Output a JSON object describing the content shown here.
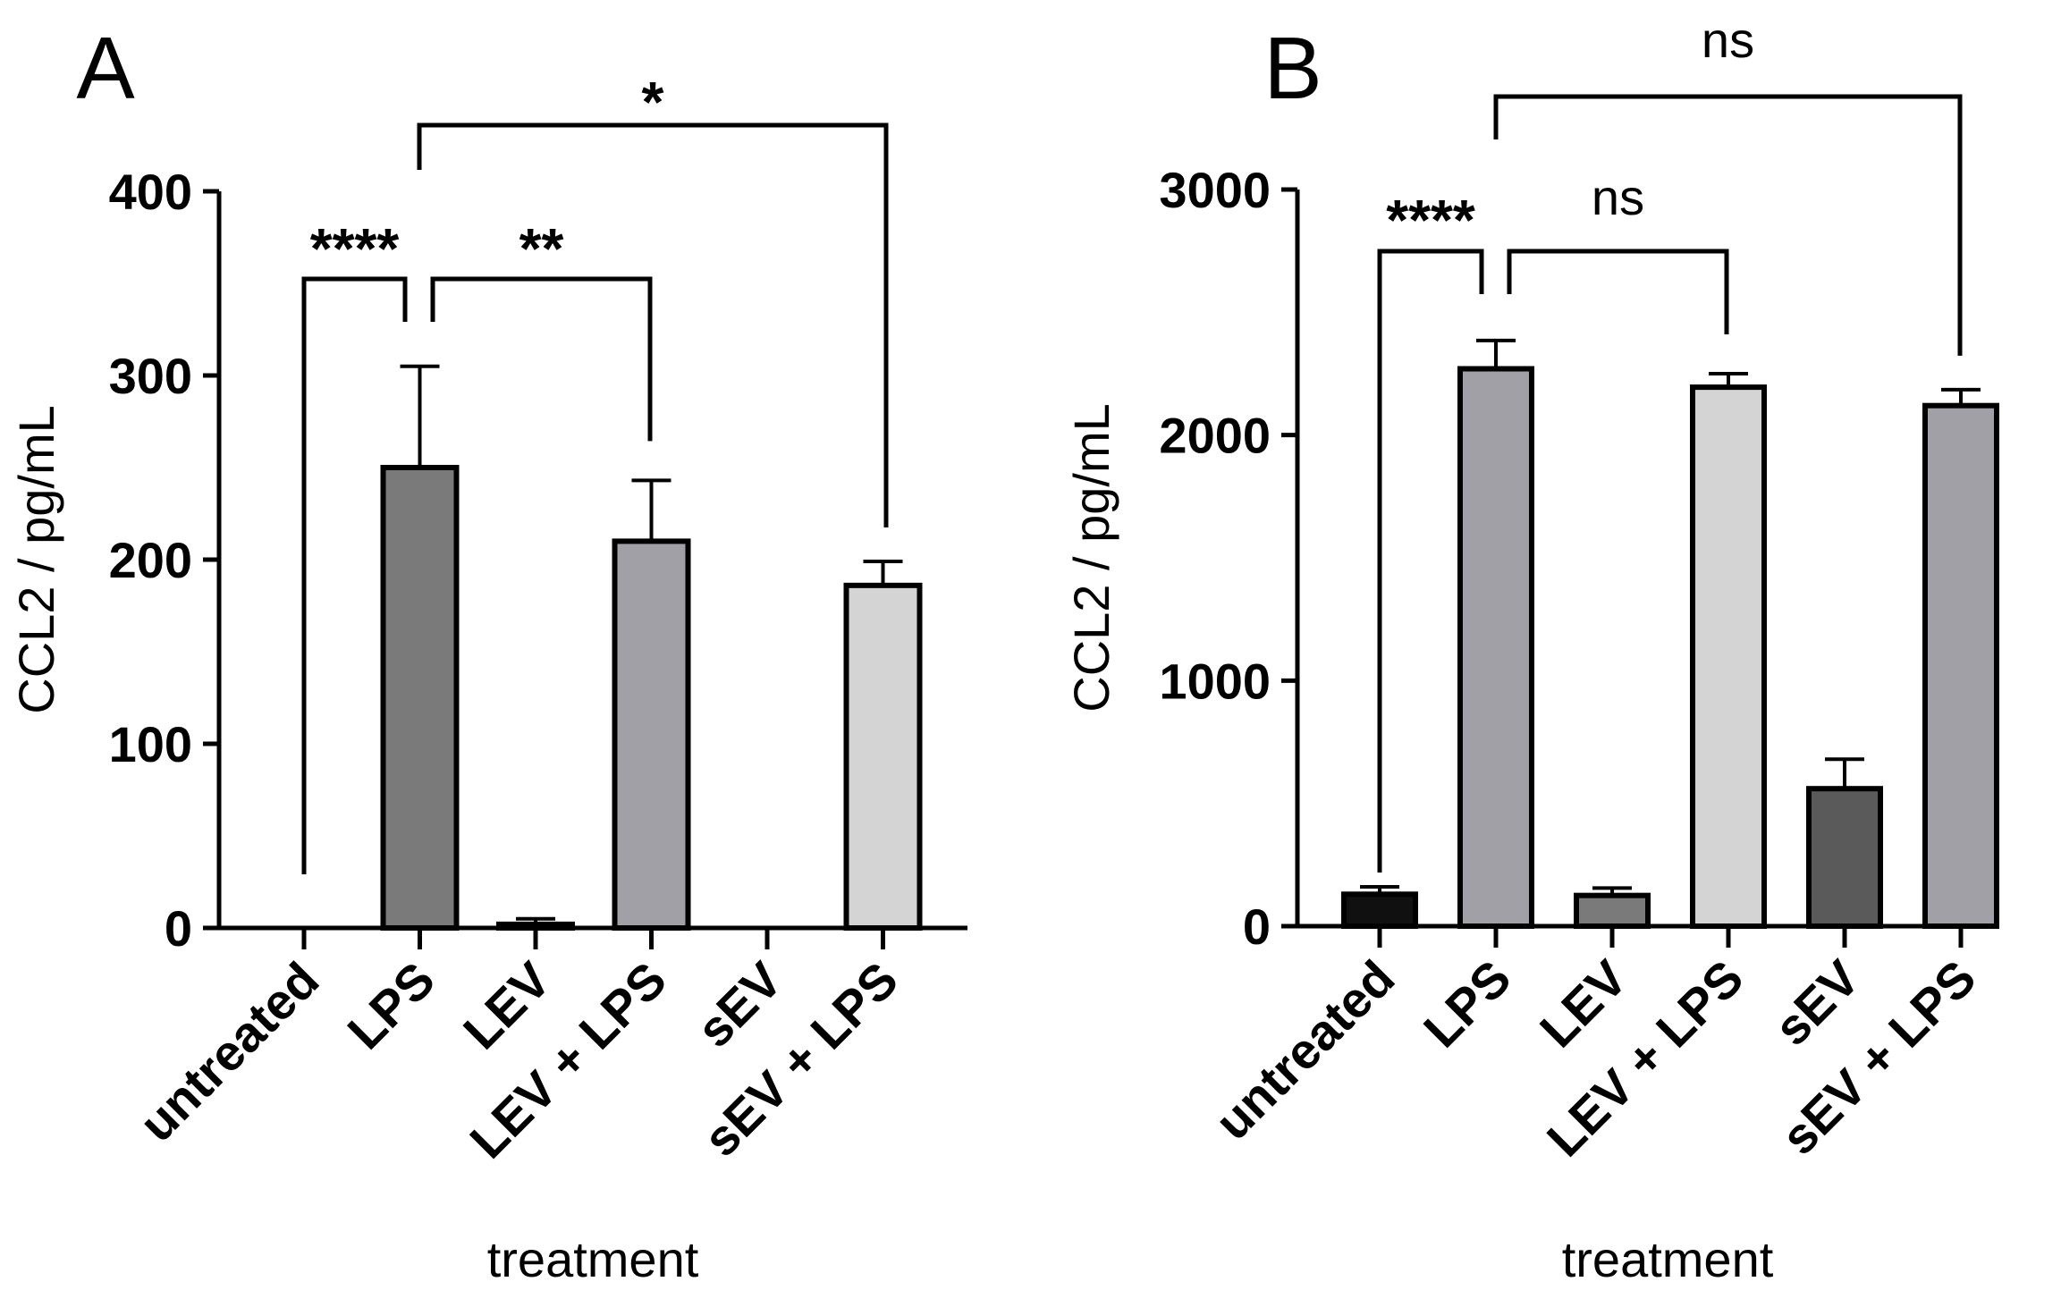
{
  "chart_data": [
    {
      "type": "bar",
      "panel": "A",
      "categories": [
        "untreated",
        "LPS",
        "LEV",
        "LEV + LPS",
        "sEV",
        "sEV + LPS"
      ],
      "values": [
        0,
        250,
        2,
        210,
        0,
        186
      ],
      "errors": [
        0,
        55,
        3,
        33,
        0,
        13
      ],
      "colors": [
        "#7a7a7a",
        "#7a7a7a",
        "#7a7a7a",
        "#a0a0a6",
        "#d4d4d4",
        "#d4d4d4"
      ],
      "ylabel": "CCL2 / pg/mL",
      "xlabel": "treatment",
      "ylim": [
        0,
        400
      ],
      "yticks": [
        0,
        100,
        200,
        300,
        400
      ],
      "grid": false,
      "legend": "none",
      "comparisons": [
        {
          "from": 0,
          "to": 1,
          "label": "****"
        },
        {
          "from": 1,
          "to": 3,
          "label": "**"
        },
        {
          "from": 1,
          "to": 5,
          "label": "*"
        }
      ]
    },
    {
      "type": "bar",
      "panel": "B",
      "categories": [
        "untreated",
        "LPS",
        "LEV",
        "LEV + LPS",
        "sEV",
        "sEV + LPS"
      ],
      "values": [
        130,
        2270,
        125,
        2195,
        560,
        2120
      ],
      "errors": [
        30,
        115,
        30,
        55,
        120,
        65
      ],
      "colors": [
        "#101010",
        "#a0a0a6",
        "#7a7a7a",
        "#d4d4d4",
        "#5a5a5a",
        "#a0a0a6"
      ],
      "ylabel": "CCL2 / pg/mL",
      "xlabel": "treatment",
      "ylim": [
        0,
        3000
      ],
      "yticks": [
        0,
        1000,
        2000,
        3000
      ],
      "grid": false,
      "legend": "none",
      "comparisons": [
        {
          "from": 0,
          "to": 1,
          "label": "****"
        },
        {
          "from": 1,
          "to": 3,
          "label": "ns"
        },
        {
          "from": 1,
          "to": 5,
          "label": "ns"
        }
      ]
    }
  ]
}
